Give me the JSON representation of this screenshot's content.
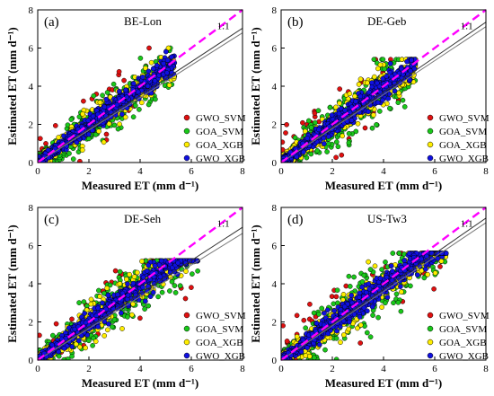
{
  "chart_data": [
    {
      "type": "scatter",
      "panel_label": "(a)",
      "title": "BE-Lon",
      "xlabel": "Measured ET (mm d⁻¹)",
      "ylabel": "Estimated ET (mm d⁻¹)",
      "xlim": [
        0,
        8
      ],
      "ylim": [
        0,
        8
      ],
      "x_ticks": [
        0,
        2,
        4,
        6,
        8
      ],
      "y_ticks": [
        0,
        2,
        4,
        6,
        8
      ],
      "one_to_one_label": "1:1",
      "one_to_one_color": "#ff00ff",
      "regression_slopes": [
        0.88,
        0.85
      ],
      "scatter_extent": {
        "xmax": 5.3,
        "spread": 0.45,
        "outlier_ymax": 6.0
      },
      "legend_position": "right",
      "series": [
        {
          "name": "GWO_SVM",
          "color": "#e01010"
        },
        {
          "name": "GOA_SVM",
          "color": "#19c819"
        },
        {
          "name": "GOA_XGB",
          "color": "#ffee00"
        },
        {
          "name": "GWO_XGB",
          "color": "#1010e0"
        }
      ]
    },
    {
      "type": "scatter",
      "panel_label": "(b)",
      "title": "DE-Geb",
      "xlabel": "Measured ET (mm d⁻¹)",
      "ylabel": "Estimated ET (mm d⁻¹)",
      "xlim": [
        0,
        8
      ],
      "ylim": [
        0,
        8
      ],
      "x_ticks": [
        0,
        2,
        4,
        6,
        8
      ],
      "y_ticks": [
        0,
        2,
        4,
        6,
        8
      ],
      "one_to_one_label": "1:1",
      "one_to_one_color": "#ff00ff",
      "regression_slopes": [
        0.92,
        0.89
      ],
      "scatter_extent": {
        "xmax": 5.2,
        "spread": 0.5,
        "outlier_ymax": 5.4
      },
      "legend_position": "right",
      "series": [
        {
          "name": "GWO_SVM",
          "color": "#e01010"
        },
        {
          "name": "GOA_SVM",
          "color": "#19c819"
        },
        {
          "name": "GOA_XGB",
          "color": "#ffee00"
        },
        {
          "name": "GWO_XGB",
          "color": "#1010e0"
        }
      ]
    },
    {
      "type": "scatter",
      "panel_label": "(c)",
      "title": "DE-Seh",
      "xlabel": "Measured ET (mm d⁻¹)",
      "ylabel": "Estimated ET (mm d⁻¹)",
      "xlim": [
        0,
        8
      ],
      "ylim": [
        0,
        8
      ],
      "x_ticks": [
        0,
        2,
        4,
        6,
        8
      ],
      "y_ticks": [
        0,
        2,
        4,
        6,
        8
      ],
      "one_to_one_label": "1:1",
      "one_to_one_color": "#ff00ff",
      "regression_slopes": [
        0.87,
        0.83
      ],
      "scatter_extent": {
        "xmax": 6.2,
        "spread": 0.5,
        "outlier_ymax": 5.2
      },
      "legend_position": "right",
      "series": [
        {
          "name": "GWO_SVM",
          "color": "#e01010"
        },
        {
          "name": "GOA_SVM",
          "color": "#19c819"
        },
        {
          "name": "GOA_XGB",
          "color": "#ffee00"
        },
        {
          "name": "GWO_XGB",
          "color": "#1010e0"
        }
      ]
    },
    {
      "type": "scatter",
      "panel_label": "(d)",
      "title": "US-Tw3",
      "xlabel": "Measured ET (mm d⁻¹)",
      "ylabel": "Estimated ET (mm d⁻¹)",
      "xlim": [
        0,
        8
      ],
      "ylim": [
        0,
        8
      ],
      "x_ticks": [
        0,
        2,
        4,
        6,
        8
      ],
      "y_ticks": [
        0,
        2,
        4,
        6,
        8
      ],
      "one_to_one_label": "1:1",
      "one_to_one_color": "#ff00ff",
      "regression_slopes": [
        0.93,
        0.9
      ],
      "scatter_extent": {
        "xmax": 6.4,
        "spread": 0.55,
        "outlier_ymax": 5.6
      },
      "legend_position": "right",
      "series": [
        {
          "name": "GWO_SVM",
          "color": "#e01010"
        },
        {
          "name": "GOA_SVM",
          "color": "#19c819"
        },
        {
          "name": "GOA_XGB",
          "color": "#ffee00"
        },
        {
          "name": "GWO_XGB",
          "color": "#1010e0"
        }
      ]
    }
  ]
}
